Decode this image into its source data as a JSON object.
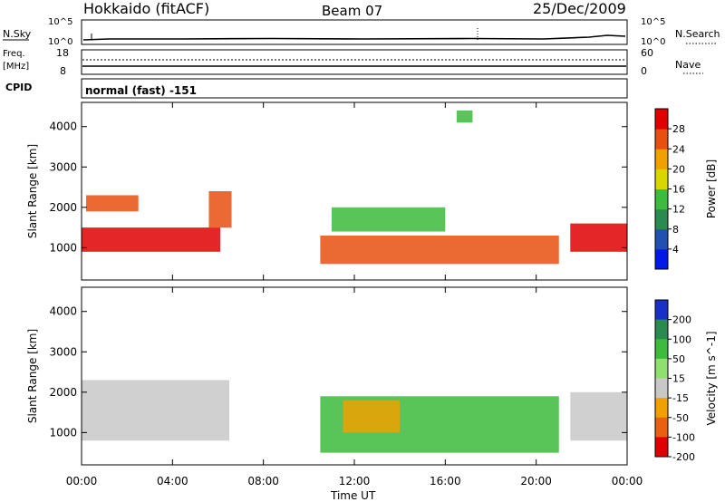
{
  "header": {
    "title": "Hokkaido (fitACF)",
    "beam": "Beam 07",
    "date": "25/Dec/2009"
  },
  "noise_panel": {
    "left_label": "N.Sky",
    "right_label": "N.Search",
    "left_ticks": [
      "10^5",
      "10^0"
    ],
    "right_ticks": [
      "10^5",
      "10^0"
    ]
  },
  "freq_panel": {
    "left_label_line1": "Freq.",
    "left_label_line2": "[MHz]",
    "left_ticks": [
      "18",
      "8"
    ],
    "right_label": "Nave",
    "right_ticks": [
      "60",
      "0"
    ]
  },
  "cpid_panel": {
    "label": "CPID",
    "text": "normal (fast) -151"
  },
  "chart_data": [
    {
      "type": "heatmap",
      "name": "power",
      "ylabel": "Slant Range [km]",
      "xlabel": "",
      "x_ticks": [
        "00:00",
        "04:00",
        "08:00",
        "12:00",
        "16:00",
        "20:00",
        "00:00"
      ],
      "y_ticks": [
        1000,
        2000,
        3000,
        4000
      ],
      "ylim": [
        200,
        4600
      ],
      "xlim_hours": [
        0,
        24
      ],
      "colorbar": {
        "label": "Power [dB]",
        "ticks": [
          "4",
          "8",
          "12",
          "16",
          "20",
          "24",
          "28"
        ],
        "colors": [
          "#0018e8",
          "#2050b0",
          "#2a8a50",
          "#3cbb3c",
          "#d8d800",
          "#f0a000",
          "#e85010",
          "#e00000"
        ]
      },
      "regions": [
        {
          "t": [
            0.0,
            6.1
          ],
          "r": [
            900,
            1500
          ],
          "color": "#e00000"
        },
        {
          "t": [
            0.2,
            2.5
          ],
          "r": [
            1900,
            2300
          ],
          "color": "#e85010"
        },
        {
          "t": [
            5.6,
            6.6
          ],
          "r": [
            1500,
            2400
          ],
          "color": "#e85010"
        },
        {
          "t": [
            10.5,
            21.0
          ],
          "r": [
            600,
            1300
          ],
          "color": "#e85010"
        },
        {
          "t": [
            11.0,
            16.0
          ],
          "r": [
            1400,
            2000
          ],
          "color": "#3cbb3c"
        },
        {
          "t": [
            21.5,
            24.0
          ],
          "r": [
            900,
            1600
          ],
          "color": "#e00000"
        },
        {
          "t": [
            16.5,
            17.2
          ],
          "r": [
            4100,
            4400
          ],
          "color": "#3cbb3c"
        }
      ]
    },
    {
      "type": "heatmap",
      "name": "velocity",
      "ylabel": "Slant Range [km]",
      "xlabel": "Time UT",
      "x_ticks": [
        "00:00",
        "04:00",
        "08:00",
        "12:00",
        "16:00",
        "20:00",
        "00:00"
      ],
      "y_ticks": [
        1000,
        2000,
        3000,
        4000
      ],
      "ylim": [
        200,
        4600
      ],
      "xlim_hours": [
        0,
        24
      ],
      "colorbar": {
        "label": "Velocity [m s^-1]",
        "ticks": [
          "200",
          "100",
          "50",
          "15",
          "-15",
          "-50",
          "-100",
          "-200"
        ],
        "colors": [
          "#1830c8",
          "#2a8a50",
          "#3cbb3c",
          "#90e070",
          "#c8c8c8",
          "#f0a000",
          "#e86010",
          "#e00000"
        ]
      },
      "regions": [
        {
          "t": [
            0.0,
            6.5
          ],
          "r": [
            800,
            2300
          ],
          "color": "#c8c8c8"
        },
        {
          "t": [
            10.5,
            21.0
          ],
          "r": [
            500,
            1900
          ],
          "color": "#3cbb3c"
        },
        {
          "t": [
            11.5,
            14.0
          ],
          "r": [
            1000,
            1800
          ],
          "color": "#f0a000"
        },
        {
          "t": [
            21.5,
            24.0
          ],
          "r": [
            800,
            2000
          ],
          "color": "#c8c8c8"
        }
      ]
    }
  ]
}
